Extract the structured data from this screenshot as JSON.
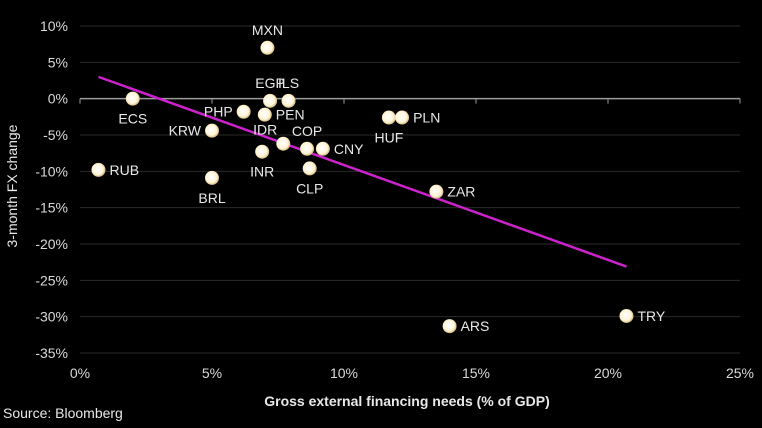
{
  "chart_data": {
    "type": "scatter",
    "title": "",
    "xlabel": "Gross external financing needs (% of GDP)",
    "ylabel": "3-month FX change",
    "source": "Source: Bloomberg",
    "xlim": [
      0,
      25
    ],
    "ylim": [
      -35,
      10
    ],
    "x_ticks": [
      0,
      5,
      10,
      15,
      20,
      25
    ],
    "x_tick_labels": [
      "0%",
      "5%",
      "10%",
      "15%",
      "20%",
      "25%"
    ],
    "y_ticks": [
      10,
      5,
      0,
      -5,
      -10,
      -15,
      -20,
      -25,
      -30,
      -35
    ],
    "y_tick_labels": [
      "10%",
      "5%",
      "0%",
      "-5%",
      "-10%",
      "-15%",
      "-20%",
      "-25%",
      "-30%",
      "-35%"
    ],
    "grid": "horizontal",
    "colors": {
      "background": "#000000",
      "point": "#fff4d6",
      "point_edge": "#c9a860",
      "trendline": "#cc22cc",
      "grid": "#2a2a2a",
      "axis": "#9a9a9a"
    },
    "points": [
      {
        "label": "ECS",
        "x": 2.0,
        "y": 0.0,
        "label_pos": "below"
      },
      {
        "label": "RUB",
        "x": 0.7,
        "y": -9.8,
        "label_pos": "right"
      },
      {
        "label": "MXN",
        "x": 7.1,
        "y": 7.0,
        "label_pos": "above"
      },
      {
        "label": "EGP",
        "x": 7.2,
        "y": -0.3,
        "label_pos": "above"
      },
      {
        "label": "ILS",
        "x": 7.9,
        "y": -0.3,
        "label_pos": "above"
      },
      {
        "label": "PHP",
        "x": 6.2,
        "y": -1.8,
        "label_pos": "left"
      },
      {
        "label": "PEN",
        "x": 7.0,
        "y": -2.2,
        "label_pos": "right"
      },
      {
        "label": "KRW",
        "x": 5.0,
        "y": -4.4,
        "label_pos": "left"
      },
      {
        "label": "IDR",
        "x": 7.7,
        "y": -6.2,
        "label_pos": "above-left"
      },
      {
        "label": "INR",
        "x": 6.9,
        "y": -7.3,
        "label_pos": "below"
      },
      {
        "label": "COP",
        "x": 8.6,
        "y": -6.9,
        "label_pos": "above"
      },
      {
        "label": "CNY",
        "x": 9.2,
        "y": -6.9,
        "label_pos": "right"
      },
      {
        "label": "CLP",
        "x": 8.7,
        "y": -9.6,
        "label_pos": "below"
      },
      {
        "label": "BRL",
        "x": 5.0,
        "y": -10.9,
        "label_pos": "below"
      },
      {
        "label": "HUF",
        "x": 11.7,
        "y": -2.6,
        "label_pos": "below"
      },
      {
        "label": "PLN",
        "x": 12.2,
        "y": -2.6,
        "label_pos": "right"
      },
      {
        "label": "ZAR",
        "x": 13.5,
        "y": -12.8,
        "label_pos": "right"
      },
      {
        "label": "ARS",
        "x": 14.0,
        "y": -31.3,
        "label_pos": "right"
      },
      {
        "label": "TRY",
        "x": 20.7,
        "y": -29.9,
        "label_pos": "right"
      }
    ],
    "trendline": {
      "x": [
        0.7,
        20.7
      ],
      "y": [
        3.0,
        -23.1
      ]
    }
  }
}
